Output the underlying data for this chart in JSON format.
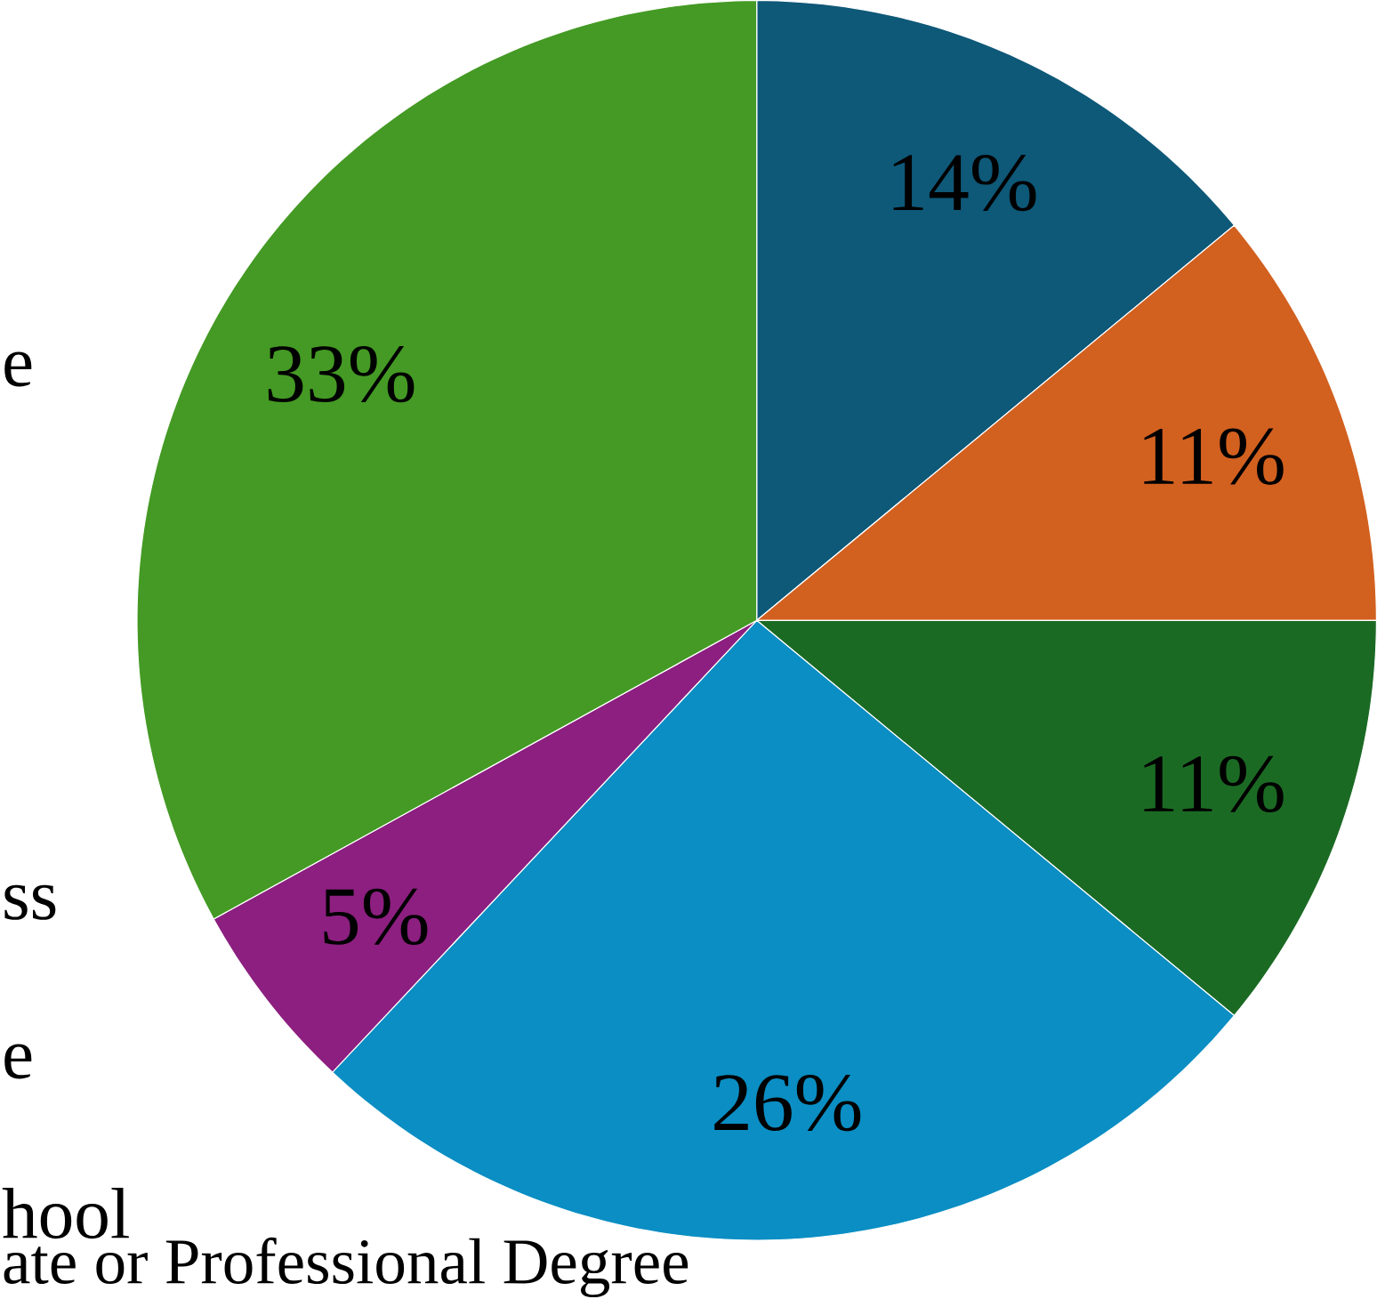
{
  "chart_data": {
    "type": "pie",
    "categories": [
      null,
      null,
      null,
      null,
      null,
      null
    ],
    "values": [
      14,
      11,
      11,
      26,
      5,
      33
    ],
    "value_labels": [
      "14%",
      "11%",
      "11%",
      "26%",
      "5%",
      "33%"
    ],
    "colors": [
      "#0e5878",
      "#d2601f",
      "#1b6a24",
      "#0a8ec3",
      "#8c1f80",
      "#449a24"
    ],
    "annotations": [
      "e",
      "ss",
      "e",
      "hool",
      "ate or Professional Degree"
    ]
  }
}
